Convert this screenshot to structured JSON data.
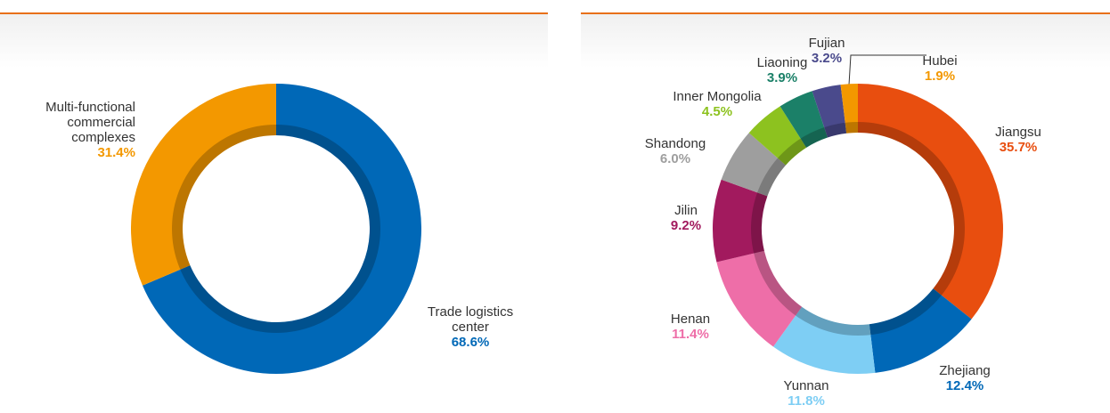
{
  "chart_data": [
    {
      "type": "pie",
      "donut": true,
      "categories": [
        "Trade logistics center",
        "Multi-functional commercial complexes"
      ],
      "values": [
        68.6,
        31.4
      ],
      "value_labels": [
        "68.6%",
        "31.4%"
      ],
      "colors": [
        "#0068b7",
        "#f39800"
      ]
    },
    {
      "type": "pie",
      "donut": true,
      "categories": [
        "Jiangsu",
        "Zhejiang",
        "Yunnan",
        "Henan",
        "Jilin",
        "Shandong",
        "Inner Mongolia",
        "Liaoning",
        "Fujian",
        "Hubei"
      ],
      "values": [
        35.7,
        12.4,
        11.8,
        11.4,
        9.2,
        6.0,
        4.5,
        3.9,
        3.2,
        1.9
      ],
      "value_labels": [
        "35.7%",
        "12.4%",
        "11.8%",
        "11.4%",
        "9.2%",
        "6.0%",
        "4.5%",
        "3.9%",
        "3.2%",
        "1.9%"
      ],
      "colors": [
        "#e84e0f",
        "#0068b7",
        "#7ecef4",
        "#ee6ea8",
        "#a21a5e",
        "#9e9e9e",
        "#8dc21f",
        "#1b8068",
        "#4a4a8c",
        "#f39800"
      ]
    }
  ]
}
